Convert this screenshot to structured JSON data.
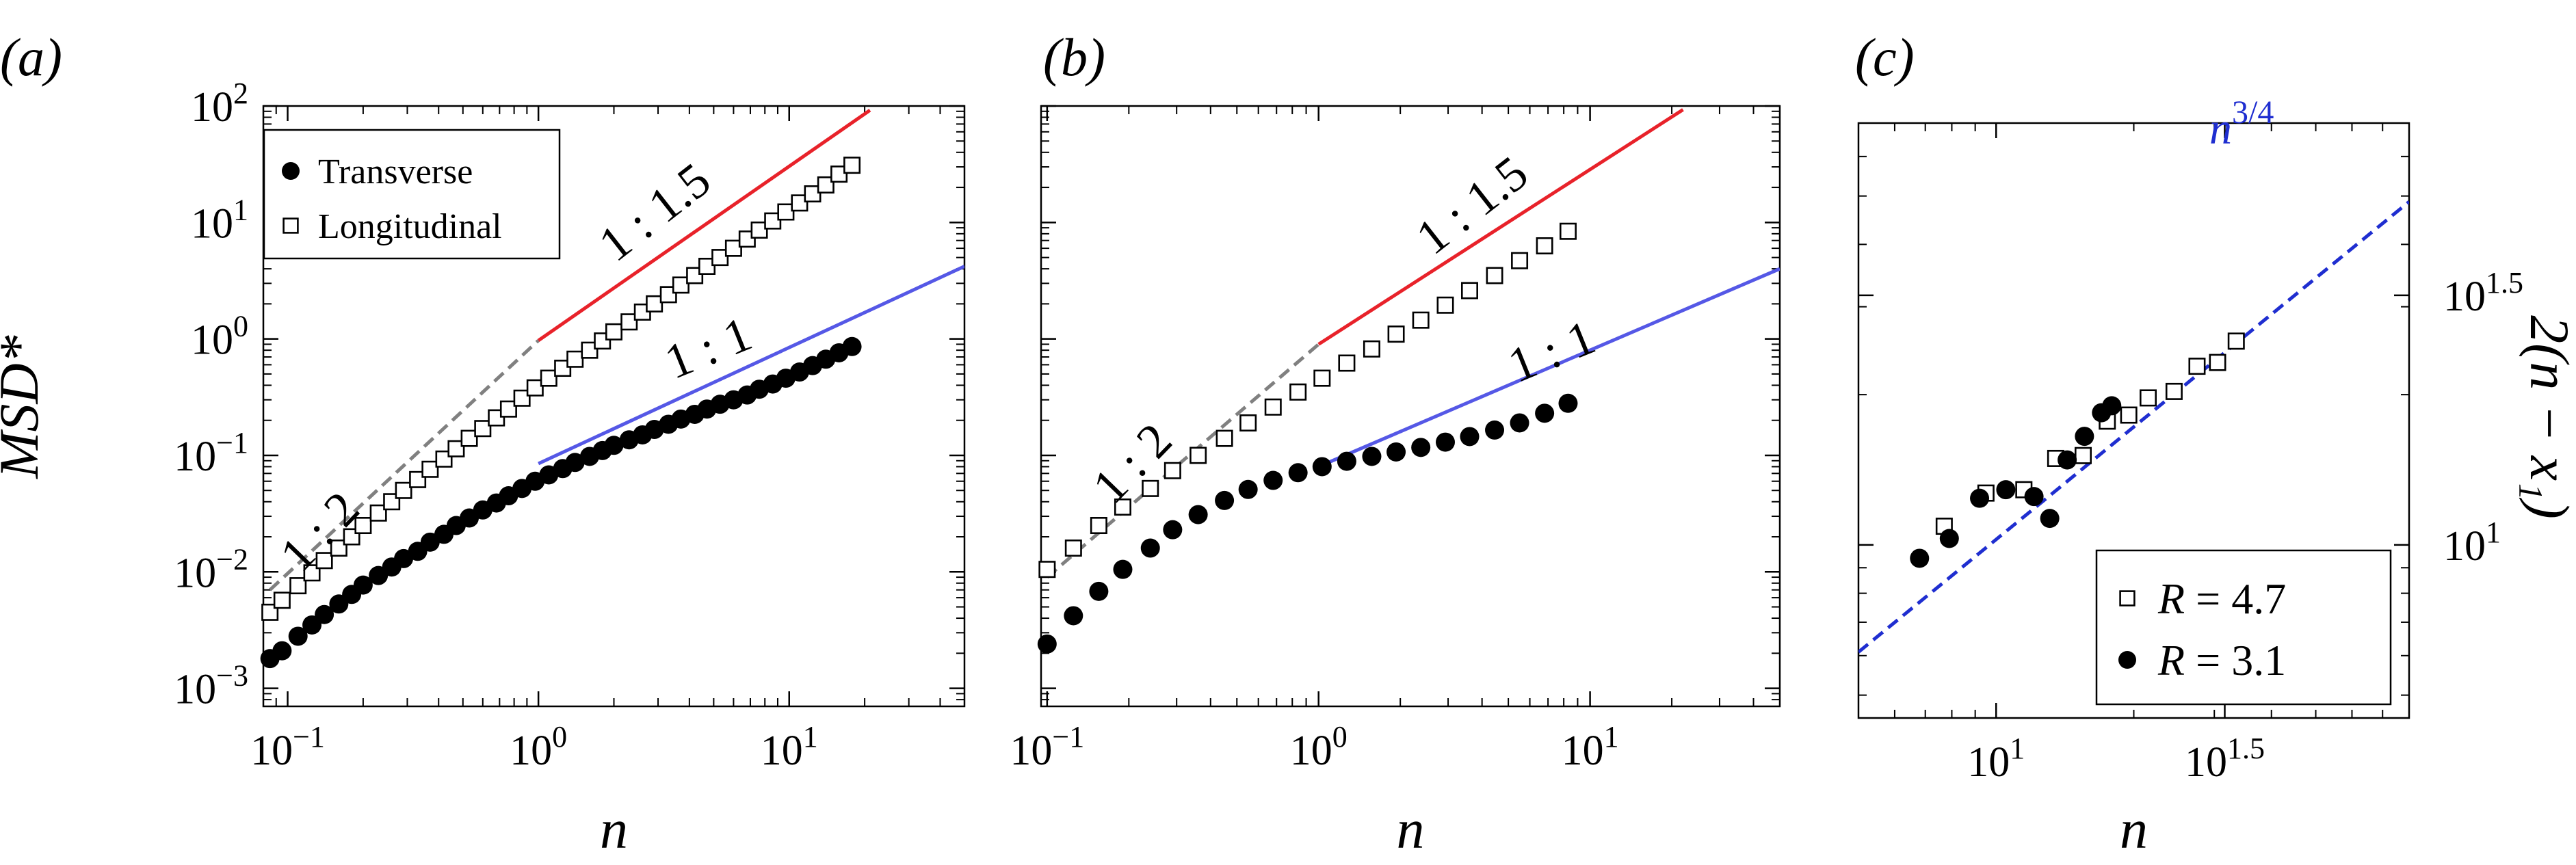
{
  "colors": {
    "red": "#e8222a",
    "blue": "#5558e6",
    "gray": "#808080",
    "dashed_blue": "#1f2ed0",
    "black": "#000000"
  },
  "chart_data": [
    {
      "panel_label": "(a)",
      "type": "scatter",
      "scale": "log-log",
      "xlabel": "n",
      "ylabel": "MSD*",
      "xlim": [
        0.08,
        50
      ],
      "ylim": [
        0.0007,
        100
      ],
      "x_ticks": [
        {
          "value": 0.1,
          "base": "10",
          "exp": "−1"
        },
        {
          "value": 1,
          "base": "10",
          "exp": "0"
        },
        {
          "value": 10,
          "base": "10",
          "exp": "1"
        }
      ],
      "y_ticks": [
        {
          "value": 0.001,
          "base": "10",
          "exp": "−3"
        },
        {
          "value": 0.01,
          "base": "10",
          "exp": "−2"
        },
        {
          "value": 0.1,
          "base": "10",
          "exp": "−1"
        },
        {
          "value": 1,
          "base": "10",
          "exp": "0"
        },
        {
          "value": 10,
          "base": "10",
          "exp": "1"
        },
        {
          "value": 100,
          "base": "10",
          "exp": "2"
        }
      ],
      "legend": {
        "position": "top-left",
        "entries": [
          {
            "label": "Transverse",
            "marker": "filled-circle"
          },
          {
            "label": "Longitudinal",
            "marker": "open-square"
          }
        ]
      },
      "series": [
        {
          "name": "Transverse",
          "marker": "filled-circle",
          "x": [
            0.085,
            0.095,
            0.11,
            0.125,
            0.14,
            0.16,
            0.18,
            0.2,
            0.23,
            0.26,
            0.29,
            0.33,
            0.37,
            0.42,
            0.47,
            0.53,
            0.6,
            0.68,
            0.76,
            0.86,
            0.97,
            1.1,
            1.25,
            1.4,
            1.6,
            1.8,
            2.0,
            2.3,
            2.6,
            2.9,
            3.3,
            3.7,
            4.2,
            4.7,
            5.3,
            6.0,
            6.8,
            7.6,
            8.6,
            9.7,
            11,
            12.4,
            14,
            15.8,
            17.8
          ],
          "y": [
            0.0018,
            0.0021,
            0.0028,
            0.0035,
            0.0043,
            0.0053,
            0.0064,
            0.0077,
            0.0093,
            0.011,
            0.013,
            0.015,
            0.018,
            0.021,
            0.025,
            0.029,
            0.034,
            0.039,
            0.045,
            0.052,
            0.06,
            0.068,
            0.077,
            0.087,
            0.098,
            0.11,
            0.122,
            0.136,
            0.15,
            0.167,
            0.185,
            0.205,
            0.225,
            0.25,
            0.275,
            0.3,
            0.33,
            0.37,
            0.41,
            0.46,
            0.52,
            0.59,
            0.67,
            0.76,
            0.86
          ]
        },
        {
          "name": "Longitudinal",
          "marker": "open-square",
          "x": [
            0.085,
            0.095,
            0.11,
            0.125,
            0.14,
            0.16,
            0.18,
            0.2,
            0.23,
            0.26,
            0.29,
            0.33,
            0.37,
            0.42,
            0.47,
            0.53,
            0.6,
            0.68,
            0.76,
            0.86,
            0.97,
            1.1,
            1.25,
            1.4,
            1.6,
            1.8,
            2.0,
            2.3,
            2.6,
            2.9,
            3.3,
            3.7,
            4.2,
            4.7,
            5.3,
            6.0,
            6.8,
            7.6,
            8.6,
            9.7,
            11,
            12.4,
            14,
            15.8,
            17.8
          ],
          "y": [
            0.0045,
            0.0057,
            0.0076,
            0.0098,
            0.0125,
            0.016,
            0.02,
            0.025,
            0.032,
            0.04,
            0.05,
            0.062,
            0.076,
            0.093,
            0.114,
            0.14,
            0.17,
            0.21,
            0.25,
            0.31,
            0.38,
            0.46,
            0.56,
            0.67,
            0.8,
            0.96,
            1.15,
            1.4,
            1.7,
            2.0,
            2.4,
            2.9,
            3.5,
            4.2,
            5.0,
            6.0,
            7.2,
            8.6,
            10.3,
            12.3,
            14.7,
            17.6,
            21,
            26,
            31
          ]
        }
      ],
      "guides": [
        {
          "label": "1 : 2",
          "style": "dashed",
          "color": "gray",
          "x": [
            0.085,
            1.0
          ],
          "y": [
            0.007,
            0.97
          ]
        },
        {
          "label": "1 : 1.5",
          "style": "solid",
          "color": "red",
          "x": [
            1.0,
            21
          ],
          "y": [
            0.97,
            92
          ]
        },
        {
          "label": "1 : 1",
          "style": "solid",
          "color": "blue",
          "x": [
            1.0,
            50
          ],
          "y": [
            0.085,
            4.2
          ]
        }
      ]
    },
    {
      "panel_label": "(b)",
      "type": "scatter",
      "scale": "log-log",
      "xlabel": "n",
      "ylabel": "",
      "xlim": [
        0.095,
        50
      ],
      "ylim": [
        0.0007,
        100
      ],
      "x_ticks": [
        {
          "value": 0.1,
          "base": "10",
          "exp": "−1"
        },
        {
          "value": 1,
          "base": "10",
          "exp": "0"
        },
        {
          "value": 10,
          "base": "10",
          "exp": "1"
        }
      ],
      "y_ticks": [
        {
          "value": 0.001,
          "base": "",
          "exp": ""
        },
        {
          "value": 0.01,
          "base": "",
          "exp": ""
        },
        {
          "value": 0.1,
          "base": "",
          "exp": ""
        },
        {
          "value": 1,
          "base": "",
          "exp": ""
        },
        {
          "value": 10,
          "base": "",
          "exp": ""
        },
        {
          "value": 100,
          "base": "",
          "exp": ""
        }
      ],
      "series": [
        {
          "name": "",
          "marker": "filled-circle",
          "x": [
            0.1,
            0.125,
            0.155,
            0.19,
            0.24,
            0.29,
            0.36,
            0.45,
            0.55,
            0.68,
            0.84,
            1.03,
            1.27,
            1.57,
            1.93,
            2.38,
            2.93,
            3.6,
            4.45,
            5.5,
            6.8,
            8.3
          ],
          "y": [
            0.0024,
            0.0042,
            0.0068,
            0.0105,
            0.016,
            0.023,
            0.031,
            0.041,
            0.051,
            0.061,
            0.071,
            0.08,
            0.089,
            0.098,
            0.107,
            0.117,
            0.13,
            0.145,
            0.165,
            0.19,
            0.23,
            0.28
          ]
        },
        {
          "name": "",
          "marker": "open-square",
          "x": [
            0.1,
            0.125,
            0.155,
            0.19,
            0.24,
            0.29,
            0.36,
            0.45,
            0.55,
            0.68,
            0.84,
            1.03,
            1.27,
            1.57,
            1.93,
            2.38,
            2.93,
            3.6,
            4.45,
            5.5,
            6.8,
            8.3
          ],
          "y": [
            0.0105,
            0.016,
            0.025,
            0.036,
            0.052,
            0.074,
            0.1,
            0.14,
            0.19,
            0.26,
            0.35,
            0.46,
            0.62,
            0.82,
            1.1,
            1.45,
            1.95,
            2.6,
            3.5,
            4.7,
            6.3,
            8.4
          ]
        }
      ],
      "guides": [
        {
          "label": "1 : 2",
          "style": "dashed",
          "color": "gray",
          "x": [
            0.1,
            1.0
          ],
          "y": [
            0.009,
            0.9
          ]
        },
        {
          "label": "1 : 1.5",
          "style": "solid",
          "color": "red",
          "x": [
            1.0,
            22
          ],
          "y": [
            0.9,
            93
          ]
        },
        {
          "label": "1 : 1",
          "style": "solid",
          "color": "blue",
          "x": [
            1.0,
            50
          ],
          "y": [
            0.08,
            4.0
          ]
        }
      ]
    },
    {
      "panel_label": "(c)",
      "type": "scatter",
      "scale": "log-log",
      "xlabel": "n",
      "ylabel": "2(n − x₁)",
      "xlim": [
        5,
        80
      ],
      "ylim": [
        4.5,
        70
      ],
      "x_ticks": [
        {
          "value": 10,
          "base": "10",
          "exp": "1"
        },
        {
          "value": 31.62,
          "base": "10",
          "exp": "1.5"
        }
      ],
      "y_ticks": [
        {
          "value": 10,
          "base": "10",
          "exp": "1"
        },
        {
          "value": 31.62,
          "base": "10",
          "exp": "1.5"
        }
      ],
      "legend": {
        "position": "bottom-right",
        "entries": [
          {
            "label": "= 4.7",
            "var": "R",
            "marker": "open-square"
          },
          {
            "label": "= 3.1",
            "var": "R",
            "marker": "filled-circle"
          }
        ]
      },
      "series": [
        {
          "name": "R = 4.7",
          "marker": "open-square",
          "x": [
            7.7,
            9.5,
            11.5,
            13.5,
            15.5,
            17.5,
            19.5,
            21.5,
            24.5,
            27.5,
            30.5,
            33.5
          ],
          "y": [
            10.9,
            12.7,
            12.9,
            14.9,
            15.1,
            17.7,
            18.2,
            19.7,
            20.3,
            22.8,
            23.2,
            25.6
          ]
        },
        {
          "name": "R = 3.1",
          "marker": "filled-circle",
          "x": [
            6.8,
            7.9,
            9.2,
            10.5,
            12.1,
            13.1,
            14.3,
            15.6,
            17.0,
            17.9
          ],
          "y": [
            9.4,
            10.3,
            12.4,
            12.9,
            12.5,
            11.3,
            14.8,
            16.5,
            18.4,
            19.0
          ]
        }
      ],
      "guides": [
        {
          "label": "n",
          "label_exp": "3/4",
          "style": "dashed",
          "color": "dashed_blue",
          "x": [
            5,
            80
          ],
          "y": [
            6.1,
            48.7
          ]
        }
      ]
    }
  ]
}
